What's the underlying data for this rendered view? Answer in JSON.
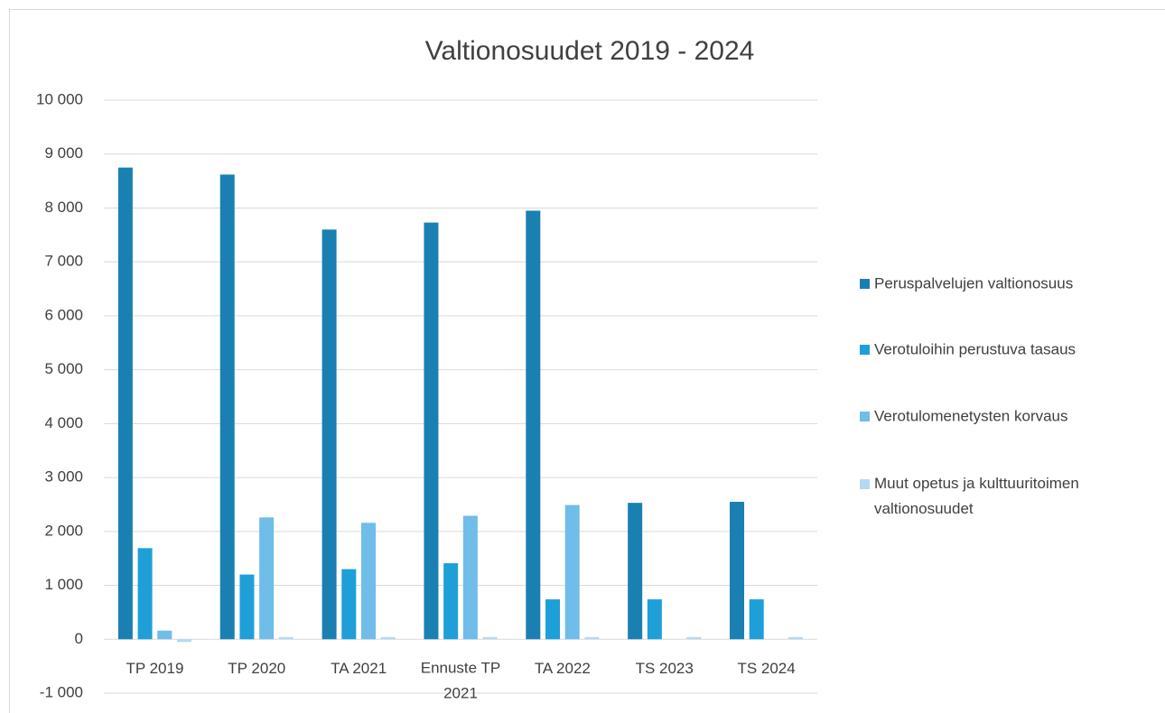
{
  "chart_data": {
    "type": "bar",
    "title": "Valtionosuudet 2019 - 2024",
    "categories": [
      "TP 2019",
      "TP 2020",
      "TA 2021",
      "Ennuste TP 2021",
      "TA 2022",
      "TS 2023",
      "TS 2024"
    ],
    "series": [
      {
        "name": "Peruspalvelujen valtionosuus",
        "color": "#1a80b1",
        "values": [
          8750,
          8620,
          7600,
          7730,
          7950,
          2530,
          2550
        ]
      },
      {
        "name": "Verotuloihin perustuva tasaus",
        "color": "#1f9fd8",
        "values": [
          1690,
          1200,
          1300,
          1410,
          740,
          740,
          740
        ]
      },
      {
        "name": "Verotulomenetysten korvaus",
        "color": "#6fbde8",
        "values": [
          160,
          2260,
          2160,
          2290,
          2490,
          0,
          0
        ]
      },
      {
        "name": "Muut opetus ja kulttuuritoimen valtionosuudet",
        "color": "#b4d9f2",
        "values": [
          -50,
          40,
          40,
          40,
          40,
          40,
          40
        ]
      }
    ],
    "ylim": [
      -1000,
      10000
    ],
    "yticks": [
      {
        "value": -1000,
        "label": "-1 000"
      },
      0,
      {
        "value": 1000,
        "label": "1 000"
      },
      {
        "value": 2000,
        "label": "2 000"
      },
      {
        "value": 3000,
        "label": "3 000"
      },
      {
        "value": 4000,
        "label": "4 000"
      },
      {
        "value": 5000,
        "label": "5 000"
      },
      {
        "value": 6000,
        "label": "6 000"
      },
      {
        "value": 7000,
        "label": "7 000"
      },
      {
        "value": 8000,
        "label": "8 000"
      },
      {
        "value": 9000,
        "label": "9 000"
      },
      {
        "value": 10000,
        "label": "10 000"
      }
    ],
    "grid": true,
    "legend": "right"
  }
}
